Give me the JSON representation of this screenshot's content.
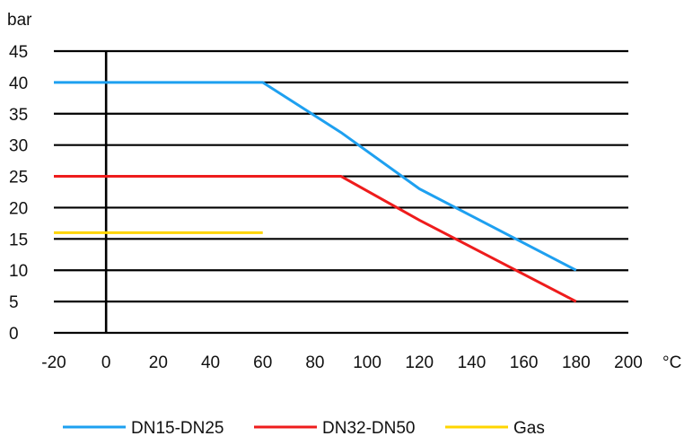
{
  "chart_data": {
    "type": "line",
    "ylabel": "bar",
    "xunit": "°C",
    "xlim": [
      -20,
      200
    ],
    "ylim": [
      0,
      45
    ],
    "x_ticks": [
      -20,
      0,
      20,
      40,
      60,
      80,
      100,
      120,
      140,
      160,
      180,
      200
    ],
    "y_ticks": [
      0,
      5,
      10,
      15,
      20,
      25,
      30,
      35,
      40,
      45
    ],
    "grid": "horizontal",
    "legend_position": "bottom",
    "series": [
      {
        "name": "DN15-DN25",
        "color": "#1ea0f0",
        "x": [
          -20,
          60,
          90,
          120,
          180
        ],
        "y": [
          40,
          40,
          32,
          23,
          10
        ]
      },
      {
        "name": "DN32-DN50",
        "color": "#ee1c1c",
        "x": [
          -20,
          90,
          120,
          180
        ],
        "y": [
          25,
          25,
          18,
          5
        ]
      },
      {
        "name": "Gas",
        "color": "#ffd500",
        "x": [
          -20,
          60
        ],
        "y": [
          16,
          16
        ]
      }
    ]
  }
}
